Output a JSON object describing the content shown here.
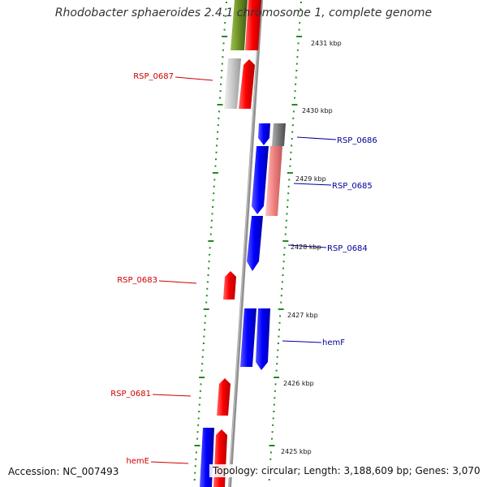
{
  "title": "Rhodobacter sphaeroides 2.4.1 chromosome 1, complete genome",
  "footer": {
    "accession": "Accession: NC_007493",
    "summary": "Topology: circular; Length: 3,188,609 bp; Genes: 3,070"
  },
  "colors": {
    "forward_gene": "#ff0000",
    "reverse_gene": "#0000ff",
    "forward_label": "#cc0000",
    "reverse_label": "#000099",
    "pseudo_light_gray": "#c8c8c8",
    "gray_gene": "#808080",
    "pink_gene": "#f08080",
    "olive_gene": "#6b8e23",
    "tick": "#228b22",
    "backbone": "#909090"
  },
  "kbp_labels": [
    "2431 kbp",
    "2430 kbp",
    "2429 kbp",
    "2428 kbp",
    "2427 kbp",
    "2426 kbp",
    "2425 kbp"
  ],
  "gene_labels": [
    {
      "text": "RSP_0687",
      "strand": "forward"
    },
    {
      "text": "RSP_0686",
      "strand": "reverse"
    },
    {
      "text": "RSP_0685",
      "strand": "reverse"
    },
    {
      "text": "RSP_0684",
      "strand": "reverse"
    },
    {
      "text": "RSP_0683",
      "strand": "forward"
    },
    {
      "text": "hemF",
      "strand": "reverse"
    },
    {
      "text": "RSP_0681",
      "strand": "forward"
    },
    {
      "text": "hemE",
      "strand": "forward"
    }
  ]
}
